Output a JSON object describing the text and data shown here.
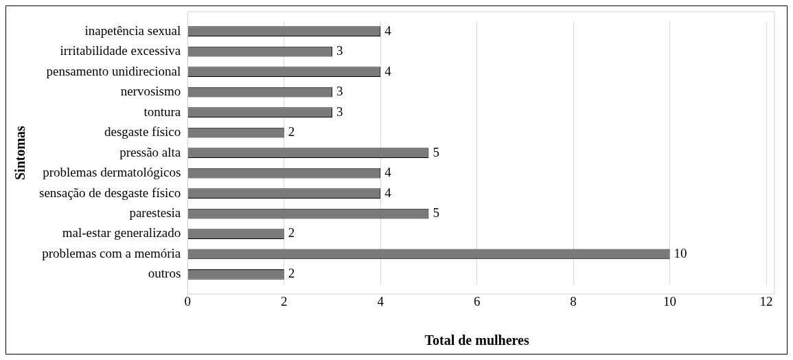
{
  "chart_data": {
    "type": "bar",
    "orientation": "horizontal",
    "xlabel": "Total de mulheres",
    "ylabel": "Sintomas",
    "categories": [
      "inapetência sexual",
      "irritabilidade excessiva",
      "pensamento unidirecional",
      "nervosismo",
      "tontura",
      "desgaste físico",
      "pressão alta",
      "problemas dermatológicos",
      "sensação de desgaste físico",
      "parestesia",
      "mal-estar generalizado",
      "problemas com a memória",
      "outros"
    ],
    "values": [
      4,
      3,
      4,
      3,
      3,
      2,
      5,
      4,
      4,
      5,
      2,
      10,
      2
    ],
    "color": "#7a7a7a",
    "xlim": [
      0,
      12
    ],
    "xticks": [
      0,
      2,
      4,
      6,
      8,
      10,
      12
    ],
    "grid": "x",
    "data_labels": true,
    "legend": false
  }
}
